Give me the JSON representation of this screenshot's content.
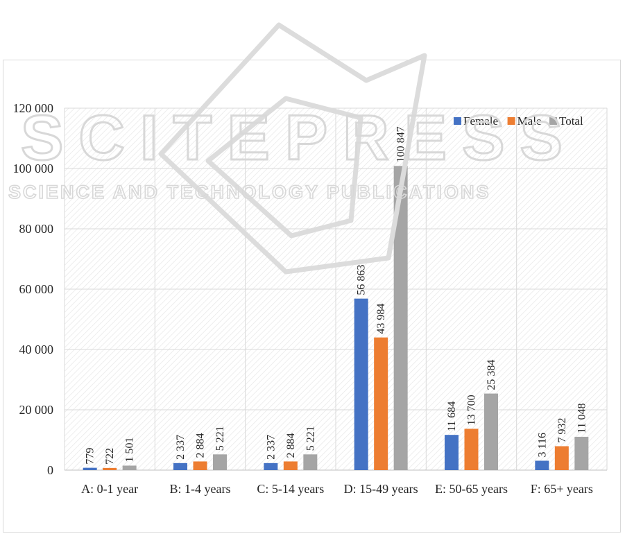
{
  "watermark": {
    "logo_main": "SCITEPRESS",
    "logo_sub": "SCIENCE AND TECHNOLOGY PUBLICATIONS"
  },
  "chart_data": {
    "type": "bar",
    "categories": [
      "A: 0-1 year",
      "B: 1-4 years",
      "C: 5-14 years",
      "D: 15-49 years",
      "E: 50-65 years",
      "F: 65+ years"
    ],
    "series": [
      {
        "name": "Female",
        "color": "#4472c4",
        "values": [
          779,
          2337,
          2337,
          56863,
          11684,
          3116
        ],
        "labels": [
          "779",
          "2 337",
          "2 337",
          "56 863",
          "11 684",
          "3 116"
        ]
      },
      {
        "name": "Male",
        "color": "#ed7d31",
        "values": [
          722,
          2884,
          2884,
          43984,
          13700,
          7932
        ],
        "labels": [
          "722",
          "2 884",
          "2 884",
          "43 984",
          "13 700",
          "7 932"
        ]
      },
      {
        "name": "Total",
        "color": "#a5a5a5",
        "values": [
          1501,
          5221,
          5221,
          100847,
          25384,
          11048
        ],
        "labels": [
          "1 501",
          "5 221",
          "5 221",
          "100 847",
          "25 384",
          "11 048"
        ]
      }
    ],
    "ylim": [
      0,
      120000
    ],
    "yticks": [
      0,
      20000,
      40000,
      60000,
      80000,
      100000,
      120000
    ],
    "ytick_labels": [
      "0",
      "20 000",
      "40 000",
      "60 000",
      "80 000",
      "100 000",
      "120 000"
    ],
    "grid": true,
    "legend_position": "top-right",
    "title": "",
    "xlabel": "",
    "ylabel": ""
  }
}
